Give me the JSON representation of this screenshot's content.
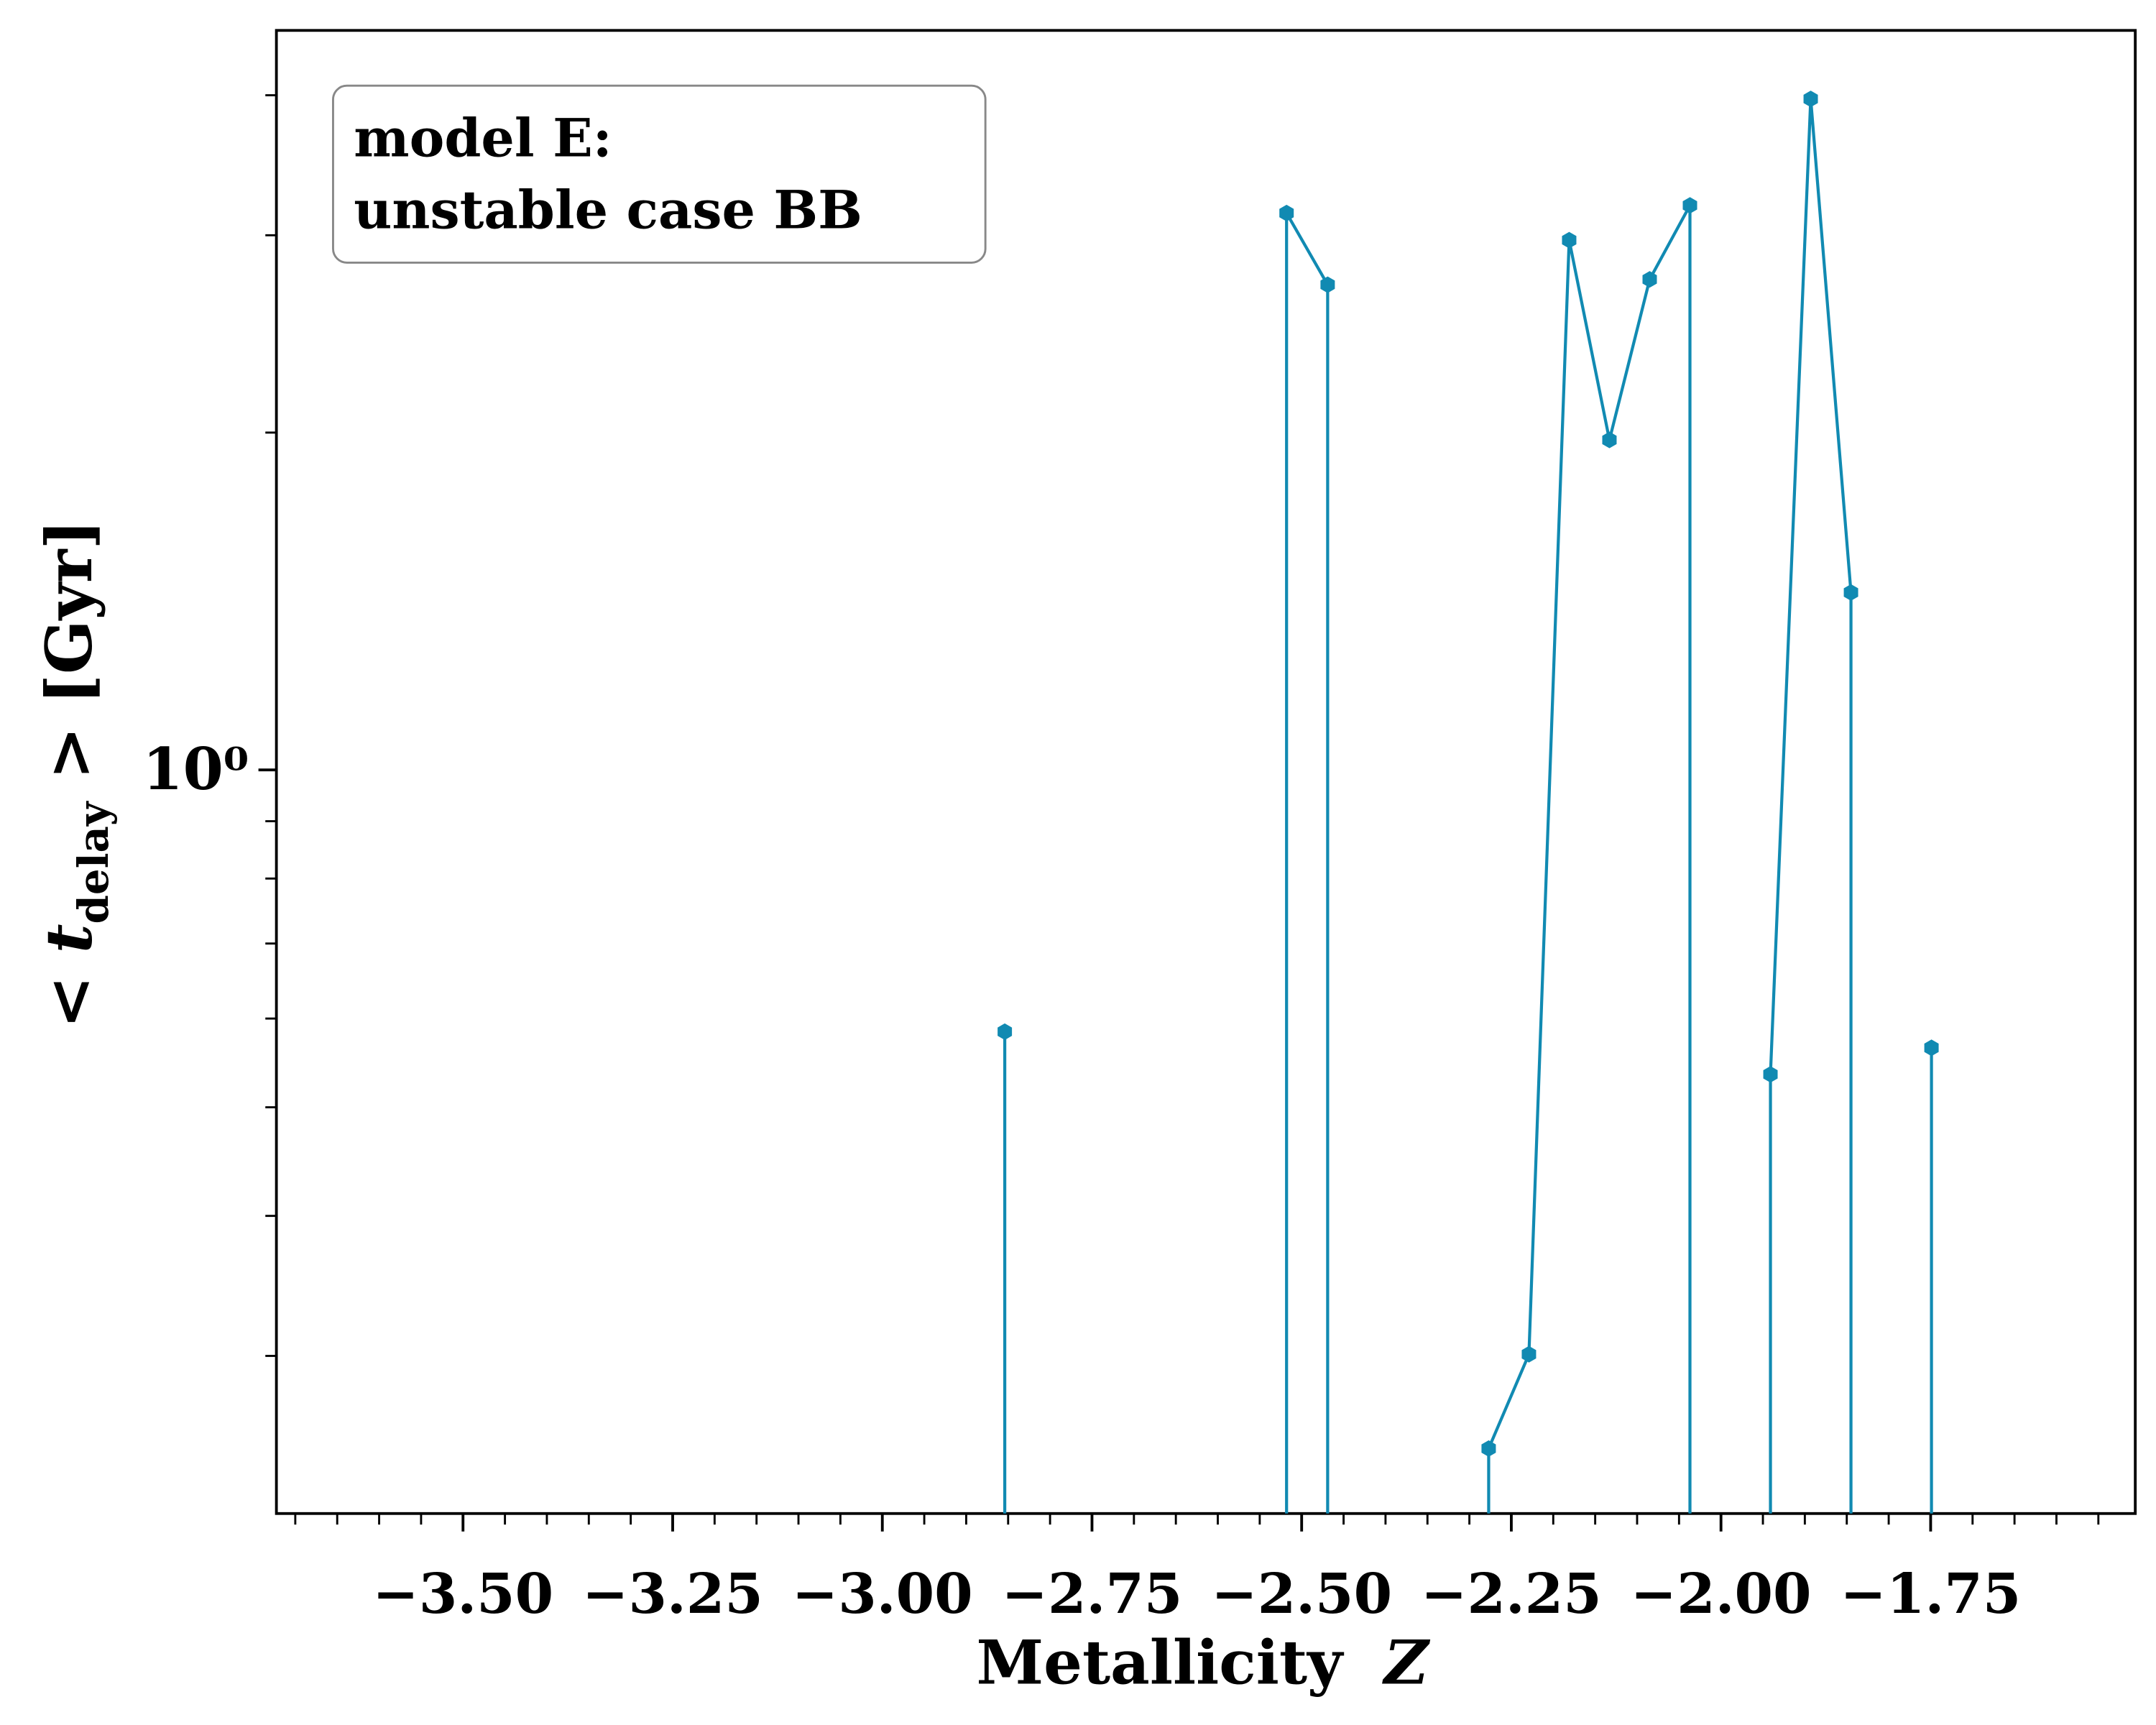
{
  "chart_data": {
    "type": "line",
    "log_y": true,
    "legend_text": [
      "model E:",
      "unstable case BB"
    ],
    "xlabel": [
      "Metallicity",
      "Z"
    ],
    "ylabel": [
      "< t",
      "delay",
      " >  [Gyr]"
    ],
    "x": [
      -2.854,
      -2.662,
      -2.518,
      -2.469,
      -2.373,
      -2.277,
      -2.229,
      -2.181,
      -2.133,
      -2.085,
      -2.037,
      -1.989,
      -1.941,
      -1.893,
      -1.845,
      -1.797,
      -1.749
    ],
    "series": [
      {
        "color": "#118ab2",
        "values": [
          0.584,
          null,
          3.14,
          2.71,
          null,
          0.248,
          0.301,
          2.97,
          1.97,
          2.74,
          3.19,
          null,
          0.535,
          3.97,
          1.44,
          null,
          0.565
        ]
      }
    ],
    "xlim": [
      -3.7225,
      -1.506
    ],
    "xticks": [
      {
        "value": -3.5,
        "label": "−3.50"
      },
      {
        "value": -3.25,
        "label": "−3.25"
      },
      {
        "value": -3.0,
        "label": "−3.00"
      },
      {
        "value": -2.75,
        "label": "−2.75"
      },
      {
        "value": -2.5,
        "label": "−2.50"
      },
      {
        "value": -2.25,
        "label": "−2.25"
      },
      {
        "value": -2.0,
        "label": "−2.00"
      },
      {
        "value": -1.75,
        "label": "−1.75"
      }
    ],
    "xminorticks": [
      -3.7,
      -3.65,
      -3.6,
      -3.55,
      -3.45,
      -3.4,
      -3.35,
      -3.3,
      -3.2,
      -3.15,
      -3.1,
      -3.05,
      -2.95,
      -2.9,
      -2.85,
      -2.8,
      -2.7,
      -2.65,
      -2.6,
      -2.55,
      -2.45,
      -2.4,
      -2.35,
      -2.3,
      -2.2,
      -2.15,
      -2.1,
      -2.05,
      -1.95,
      -1.9,
      -1.85,
      -1.8,
      -1.7,
      -1.65,
      -1.6,
      -1.55
    ],
    "ylim": [
      0.217,
      4.57
    ],
    "yticks": [
      {
        "value": 1,
        "label": "10⁰"
      }
    ],
    "yminorticks": [
      0.3,
      0.4,
      0.5,
      0.6,
      0.7,
      0.8,
      0.9,
      2,
      3,
      4
    ]
  }
}
